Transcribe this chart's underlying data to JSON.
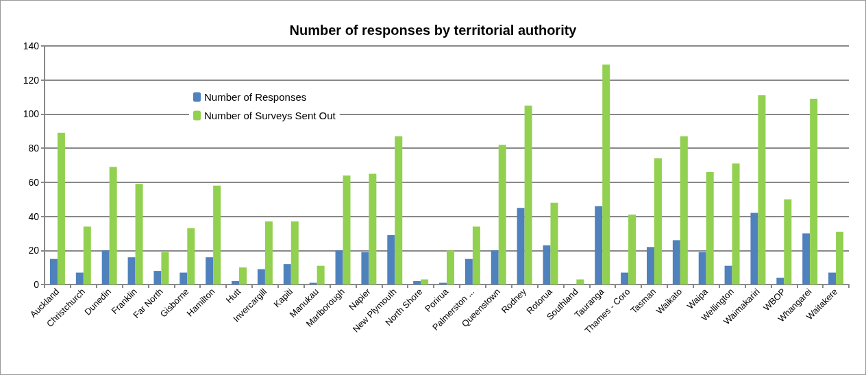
{
  "chart_data": {
    "type": "bar",
    "title": "Number of responses by territorial authority",
    "categories": [
      "Auckland",
      "Christchurch",
      "Dunedin",
      "Franklin",
      "Far North",
      "Gisborne",
      "Hamilton",
      "Hutt",
      "Invercargill",
      "Kapiti",
      "Manukau",
      "Marlborough",
      "Napier",
      "New Plymouth",
      "North Shore",
      "Porirua",
      "Palmerston ...",
      "Queenstown",
      "Rodney",
      "Rotorua",
      "Southland",
      "Tauranga",
      "Thames - Coro",
      "Tasman",
      "Waikato",
      "Waipa",
      "Wellington",
      "Waimakariri",
      "WBOP",
      "Whangarei",
      "Waitakere"
    ],
    "series": [
      {
        "name": "Number of Responses",
        "color": "#4f81bd",
        "values": [
          15,
          7,
          20,
          16,
          8,
          7,
          16,
          2,
          9,
          12,
          1,
          20,
          19,
          29,
          2,
          1,
          15,
          20,
          45,
          23,
          0,
          46,
          7,
          22,
          26,
          19,
          11,
          42,
          4,
          30,
          7
        ]
      },
      {
        "name": "Number of Surveys Sent Out",
        "color": "#92d050",
        "values": [
          89,
          34,
          69,
          59,
          19,
          33,
          58,
          10,
          37,
          37,
          11,
          64,
          65,
          87,
          3,
          20,
          34,
          82,
          105,
          48,
          3,
          129,
          41,
          74,
          87,
          66,
          71,
          111,
          50,
          109,
          31
        ]
      }
    ],
    "ylim": [
      0,
      140
    ],
    "yticks": [
      0,
      20,
      40,
      60,
      80,
      100,
      120,
      140
    ],
    "grid": "y",
    "legend": "top left"
  }
}
